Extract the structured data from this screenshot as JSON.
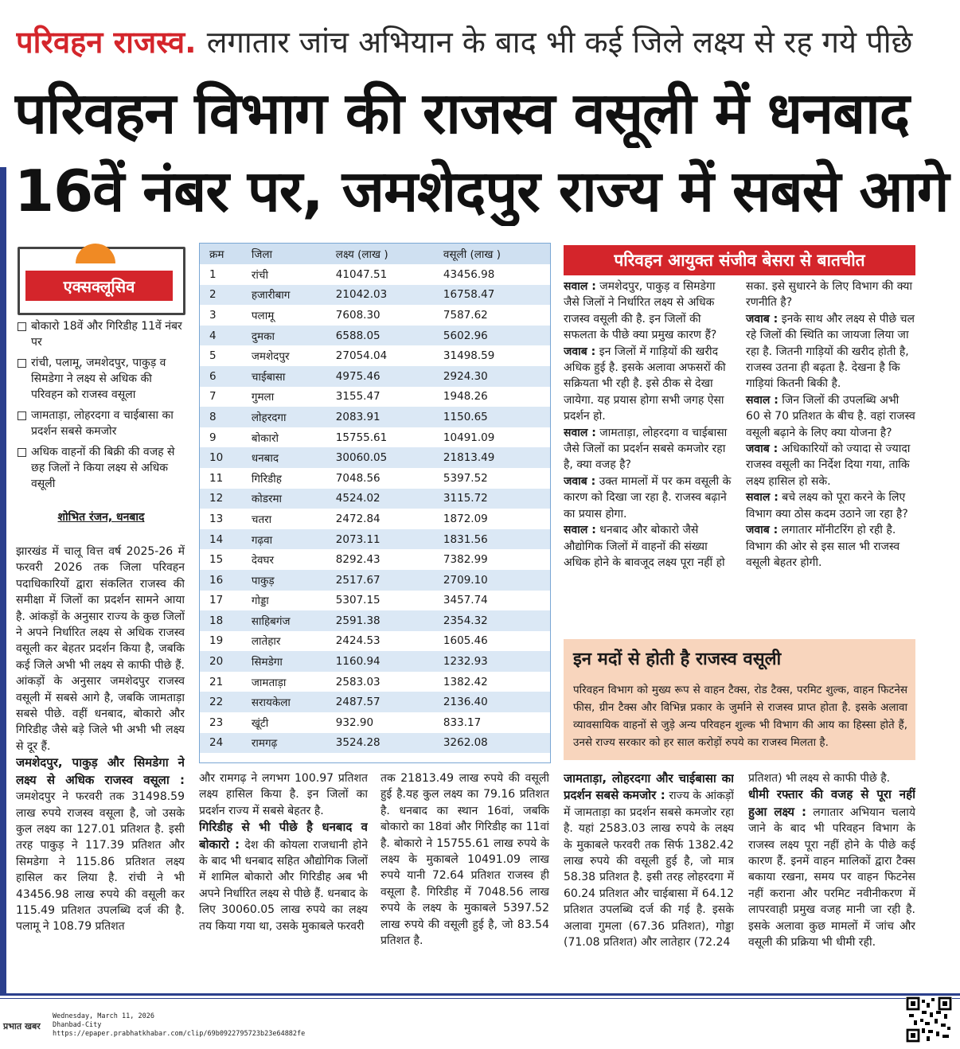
{
  "header": {
    "kicker_red": "परिवहन राजस्व.",
    "kicker": "लगातार जांच अभियान के बाद भी कई जिले लक्ष्य से रह गये पीछे",
    "headline_line1": "परिवहन विभाग की राजस्व वसूली में धनबाद",
    "headline_line2": "16वें नंबर पर, जमशेदपुर राज्य में सबसे आगे"
  },
  "sidebar": {
    "label": "एक्सक्लूसिव",
    "bullets": [
      "बोकारो 18वें और गिरिडीह 11वें नंबर पर",
      "रांची, पलामू, जमशेदपुर, पाकुड़ व सिमडेगा ने लक्ष्य से अधिक की परिवहन को राजस्व वसूला",
      "जामताड़ा, लोहरदगा व चाईबासा का प्रदर्शन सबसे कमजोर",
      "अधिक वाहनों की बिक्री की वजह से छह जिलों ने किया लक्ष्य से अधिक वसूली"
    ],
    "byline": "शोभित रंजन, धनबाद"
  },
  "table": {
    "headers": [
      "क्रम",
      "जिला",
      "लक्ष्य (लाख )",
      "वसूली (लाख )"
    ],
    "rows": [
      [
        "1",
        "रांची",
        "41047.51",
        "43456.98"
      ],
      [
        "2",
        "हजारीबाग",
        "21042.03",
        "16758.47"
      ],
      [
        "3",
        "पलामू",
        "7608.30",
        "7587.62"
      ],
      [
        "4",
        "दुमका",
        "6588.05",
        "5602.96"
      ],
      [
        "5",
        "जमशेदपुर",
        "27054.04",
        "31498.59"
      ],
      [
        "6",
        "चाईबासा",
        "4975.46",
        "2924.30"
      ],
      [
        "7",
        "गुमला",
        "3155.47",
        "1948.26"
      ],
      [
        "8",
        "लोहरदगा",
        "2083.91",
        "1150.65"
      ],
      [
        "9",
        "बोकारो",
        "15755.61",
        "10491.09"
      ],
      [
        "10",
        "धनबाद",
        "30060.05",
        "21813.49"
      ],
      [
        "11",
        "गिरिडीह",
        "7048.56",
        "5397.52"
      ],
      [
        "12",
        "कोडरमा",
        "4524.02",
        "3115.72"
      ],
      [
        "13",
        "चतरा",
        "2472.84",
        "1872.09"
      ],
      [
        "14",
        "गढ़वा",
        "2073.11",
        "1831.56"
      ],
      [
        "15",
        "देवघर",
        "8292.43",
        "7382.99"
      ],
      [
        "16",
        "पाकुड़",
        "2517.67",
        "2709.10"
      ],
      [
        "17",
        "गोड्डा",
        "5307.15",
        "3457.74"
      ],
      [
        "18",
        "साहिबगंज",
        "2591.38",
        "2354.32"
      ],
      [
        "19",
        "लातेहार",
        "2424.53",
        "1605.46"
      ],
      [
        "20",
        "सिमडेगा",
        "1160.94",
        "1232.93"
      ],
      [
        "21",
        "जामताड़ा",
        "2583.03",
        "1382.42"
      ],
      [
        "22",
        "सरायकेला",
        "2487.57",
        "2136.40"
      ],
      [
        "23",
        "खूंटी",
        "932.90",
        "833.17"
      ],
      [
        "24",
        "रामगढ़",
        "3524.28",
        "3262.08"
      ]
    ]
  },
  "article": {
    "columns": [
      [
        {
          "text": "झारखंड में चालू वित्त वर्ष 2025-26 में फरवरी 2026 तक जिला परिवहन पदाधिकारियों द्वारा संकलित राजस्व की समीक्षा में जिलों का प्रदर्शन सामने आया है. आंकड़ों के अनुसार राज्य के कुछ जिलों ने अपने निर्धारित लक्ष्य से अधिक राजस्व वसूली कर बेहतर प्रदर्शन किया है, जबकि कई जिले अभी भी लक्ष्य से काफी पीछे हैं. आंकड़ों के अनुसार जमशेदपुर राजस्व वसूली में सबसे आगे है, जबकि जामताड़ा सबसे पीछे. वहीं धनबाद, बोकारो और गिरिडीह जैसे बड़े जिले भी अभी भी लक्ष्य से दूर हैं."
        },
        {
          "subhead": "जमशेदपुर, पाकुड़ और सिमडेगा ने लक्ष्य से अधिक राजस्व वसूला :",
          "text": "जमशेदपुर ने फरवरी तक 31498.59 लाख रुपये राजस्व वसूला है, जो उसके कुल लक्ष्य का 127.01 प्रतिशत है. इसी तरह पाकुड़ ने 117.39 प्रतिशत और सिमडेगा ने 115.86 प्रतिशत लक्ष्य हासिल कर लिया है. रांची ने भी 43456.98 लाख रुपये की वसूली कर 115.49 प्रतिशत उपलब्धि दर्ज की है. पलामू ने 108.79 प्रतिशत"
        }
      ],
      [
        {
          "text": "और रामगढ़ ने लगभग 100.97 प्रतिशत लक्ष्य हासिल किया है. इन जिलों का प्रदर्शन राज्य में सबसे बेहतर है."
        },
        {
          "subhead": "गिरिडीह से भी पीछे है धनबाद व बोकारो :",
          "text": "देश की कोयला राजधानी होने के बाद भी धनबाद सहित औद्योगिक जिलों में शामिल बोकारो और गिरिडीह अब भी अपने निर्धारित लक्ष्य से पीछे हैं. धनबाद के लिए 30060.05 लाख रुपये का लक्ष्य तय किया गया था, उसके मुकाबले फरवरी"
        }
      ],
      [
        {
          "text": "तक 21813.49 लाख रुपये की वसूली हुई है.यह कुल लक्ष्य का 79.16 प्रतिशत है. धनबाद का स्थान 16वां, जबकि बोकारो का 18वां और गिरिडीह का 11वां है. बोकारो ने 15755.61 लाख रुपये के लक्ष्य के मुकाबले 10491.09 लाख रुपये यानी 72.64 प्रतिशत राजस्व ही वसूला है. गिरिडीह में 7048.56 लाख रुपये के लक्ष्य के मुकाबले 5397.52 लाख रुपये की वसूली हुई है, जो 83.54 प्रतिशत है."
        }
      ],
      [
        {
          "subhead": "जामताड़ा, लोहरदगा और चाईबासा का प्रदर्शन सबसे कमजोर :",
          "text": "राज्य के आंकड़ों में जामताड़ा का प्रदर्शन सबसे कमजोर रहा है. यहां 2583.03 लाख रुपये के लक्ष्य के मुकाबले फरवरी तक सिर्फ 1382.42 लाख रुपये की वसूली हुई है, जो मात्र 58.38 प्रतिशत है. इसी तरह लोहरदगा में 60.24 प्रतिशत और चाईबासा में 64.12 प्रतिशत उपलब्धि दर्ज की गई है. इसके अलावा गुमला (67.36 प्रतिशत), गोड्डा (71.08 प्रतिशत) और लातेहार (72.24"
        }
      ],
      [
        {
          "text": "प्रतिशत) भी लक्ष्य से काफी पीछे है."
        },
        {
          "subhead": "धीमी रफ्तार की वजह से पूरा नहीं हुआ लक्ष्य :",
          "text": "लगातार अभियान चलाये जाने के बाद भी परिवहन विभाग के राजस्व लक्ष्य पूरा नहीं होने के पीछे कई कारण हैं. इनमें वाहन मालिकों द्वारा टैक्स बकाया रखना, समय पर वाहन फिटनेस नहीं कराना और परमिट नवीनीकरण में लापरवाही प्रमुख वजह मानी जा रही है. इसके अलावा कुछ मामलों में जांच और वसूली की प्रक्रिया भी धीमी रही."
        }
      ]
    ]
  },
  "interview": {
    "title": "परिवहन आयुक्त संजीव बेसरा से बातचीत",
    "question_label": "सवाल :",
    "answer_label": "जवाब :",
    "items": [
      {
        "q": "जमशेदपुर, पाकुड़ व सिमडेगा जैसे जिलों ने निर्धारित लक्ष्य से अधिक राजस्व वसूली की है. इन जिलों की सफलता के पीछे क्या प्रमुख कारण हैं?",
        "a": "इन जिलों में गाड़ियों की खरीद अधिक हुई है. इसके अलावा अफसरों की सक्रियता भी रही है. इसे ठीक से देखा जायेगा. यह प्रयास होगा सभी जगह ऐसा प्रदर्शन हो."
      },
      {
        "q": "जामताड़ा, लोहरदगा व चाईबासा जैसे जिलों का प्रदर्शन सबसे कमजोर रहा है, क्या वजह है?",
        "a": "उक्त मामलों में पर कम वसूली के कारण को दिखा जा रहा है. राजस्व बढ़ाने का प्रयास होगा."
      },
      {
        "q": "धनबाद और बोकारो जैसे औद्योगिक जिलों में वाहनों की संख्या अधिक होने के बावजूद लक्ष्य पूरा नहीं हो सका. इसे सुधारने के लिए विभाग की क्या रणनीति है?",
        "a": "इनके साथ और लक्ष्य से पीछे चल रहे जिलों की स्थिति का जायजा लिया जा रहा है. जितनी गाड़ियों की खरीद होती है, राजस्व उतना ही बढ़ता है. देखना है कि गाड़ियां कितनी बिकी है."
      },
      {
        "q": "जिन जिलों की उपलब्धि अभी 60 से 70 प्रतिशत के बीच है. वहां राजस्व वसूली बढ़ाने के लिए क्या योजना है?",
        "a": "अधिकारियों को ज्यादा से ज्यादा राजस्व वसूली का निर्देश दिया गया, ताकि लक्ष्य हासिल हो सके."
      },
      {
        "q": "बचे लक्ष्य को पूरा करने के लिए विभाग क्या ठोस कदम उठाने जा रहा है?",
        "a": "लगातार मॉनीटरिंग हो रही है. विभाग की ओर से इस साल भी राजस्व वसूली बेहतर होगी."
      }
    ]
  },
  "box": {
    "title": "इन मदों से होती है राजस्व वसूली",
    "text": "परिवहन विभाग को मुख्य रूप से वाहन टैक्स, रोड टैक्स, परमिट शुल्क, वाहन फिटनेस फीस, ग्रीन टैक्स और विभिन्न प्रकार के जुर्माने से राजस्व प्राप्त होता है. इसके अलावा व्यावसायिक वाहनों से जुड़े अन्य परिवहन शुल्क भी विभाग की आय का हिस्सा होते हैं, उनसे राज्य सरकार को हर साल करोड़ों रुपये का राजस्व मिलता है."
  },
  "footer": {
    "logo": "प्रभात खबर",
    "date": "Wednesday, March 11, 2026",
    "edition": "Dhanbad-City",
    "url": "https://epaper.prabhatkhabar.com/clip/69b0922795723b23e64882fe"
  }
}
